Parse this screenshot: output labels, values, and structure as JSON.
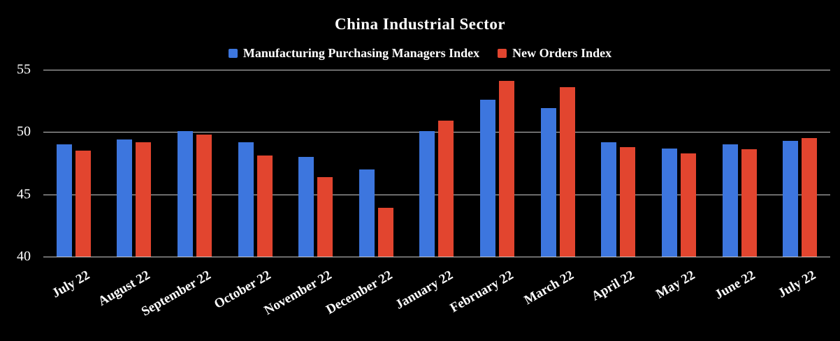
{
  "title": "China Industrial Sector",
  "chart_data": {
    "type": "bar",
    "title": "China Industrial Sector",
    "categories": [
      "July 22",
      "August 22",
      "September 22",
      "October 22",
      "November 22",
      "December 22",
      "January 22",
      "February 22",
      "March 22",
      "April 22",
      "May 22",
      "June 22",
      "July 22"
    ],
    "series": [
      {
        "name": "Manufacturing Purchasing Managers Index",
        "color": "#3D76DE",
        "values": [
          49.0,
          49.4,
          50.1,
          49.2,
          48.0,
          47.0,
          50.1,
          52.6,
          51.9,
          49.2,
          48.7,
          49.0,
          49.3
        ]
      },
      {
        "name": "New Orders Index",
        "color": "#E2452F",
        "values": [
          48.5,
          49.2,
          49.8,
          48.1,
          46.4,
          43.9,
          50.9,
          54.1,
          53.6,
          48.8,
          48.3,
          48.6,
          49.5
        ]
      }
    ],
    "xlabel": "",
    "ylabel": "",
    "ylim": [
      40,
      55
    ],
    "yticks": [
      40,
      45,
      50,
      55
    ],
    "grid": true,
    "legend_position": "top",
    "background": "#000000",
    "text_color": "#ffffff",
    "gridline_color": "#c9c9c9"
  }
}
